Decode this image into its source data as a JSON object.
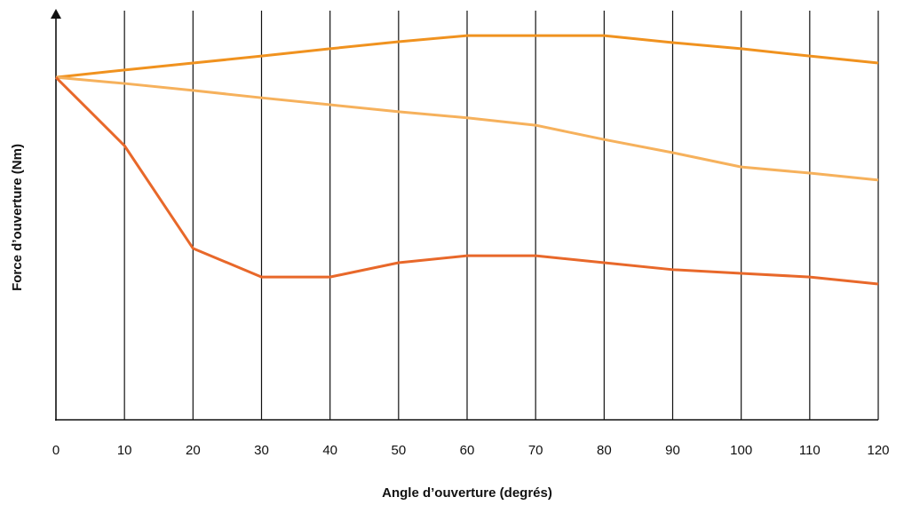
{
  "chart_data": {
    "type": "line",
    "x_label": "Angle d’ouverture (degrés)",
    "y_label": "Force d’ouverture (Nm)",
    "x": [
      0,
      10,
      20,
      30,
      40,
      50,
      60,
      70,
      80,
      90,
      100,
      110,
      120
    ],
    "series": [
      {
        "color": "#f0921f",
        "values": [
          83.7,
          85.5,
          87.2,
          88.9,
          90.7,
          92.4,
          93.9,
          93.9,
          93.9,
          92.2,
          90.7,
          88.9,
          87.2
        ]
      },
      {
        "color": "#f6b15c",
        "values": [
          83.7,
          82.2,
          80.5,
          78.7,
          77.0,
          75.3,
          73.8,
          72.0,
          68.5,
          65.3,
          61.8,
          60.3,
          58.6
        ]
      },
      {
        "color": "#e8682a",
        "values": [
          83.7,
          67.0,
          41.9,
          34.9,
          34.9,
          38.4,
          40.1,
          40.1,
          38.4,
          36.7,
          35.8,
          34.9,
          33.2
        ]
      }
    ],
    "xlim": [
      0,
      120
    ],
    "xticks": [
      0,
      10,
      20,
      30,
      40,
      50,
      60,
      70,
      80,
      90,
      100,
      110,
      120
    ],
    "ylim": [
      0,
      100
    ],
    "grid": true
  }
}
